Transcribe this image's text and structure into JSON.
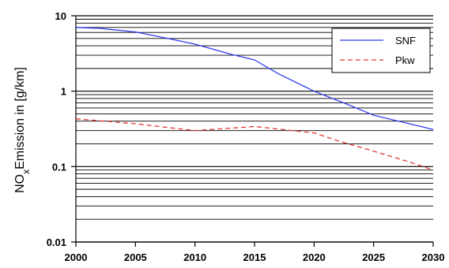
{
  "chart_data": {
    "type": "line",
    "title": "",
    "xlabel": "",
    "ylabel": "NO",
    "ylabel_subscript": "x",
    "ylabel_rest": "Emission in [g/km]",
    "yscale": "log",
    "xlim": [
      2000,
      2030
    ],
    "ylim": [
      0.01,
      10
    ],
    "x_ticks": [
      "2000",
      "2005",
      "2010",
      "2015",
      "2020",
      "2025",
      "2030"
    ],
    "y_ticks": [
      "10",
      "1",
      "0.1",
      "0.01"
    ],
    "grid": "horizontal",
    "legend_position": "top-right",
    "series": [
      {
        "name": "SNF",
        "color": "#2e3df0",
        "style": "solid",
        "x": [
          2000,
          2002,
          2005,
          2008,
          2010,
          2013,
          2015,
          2017,
          2020,
          2023,
          2025,
          2028,
          2030
        ],
        "y": [
          7.0,
          6.8,
          6.1,
          4.9,
          4.2,
          3.1,
          2.6,
          1.7,
          1.0,
          0.65,
          0.48,
          0.37,
          0.31
        ]
      },
      {
        "name": "Pkw",
        "color": "#e23636",
        "style": "dashed",
        "x": [
          2000,
          2005,
          2010,
          2015,
          2020,
          2022,
          2025,
          2028,
          2030
        ],
        "y": [
          0.43,
          0.37,
          0.3,
          0.34,
          0.28,
          0.22,
          0.16,
          0.115,
          0.09
        ]
      }
    ]
  }
}
